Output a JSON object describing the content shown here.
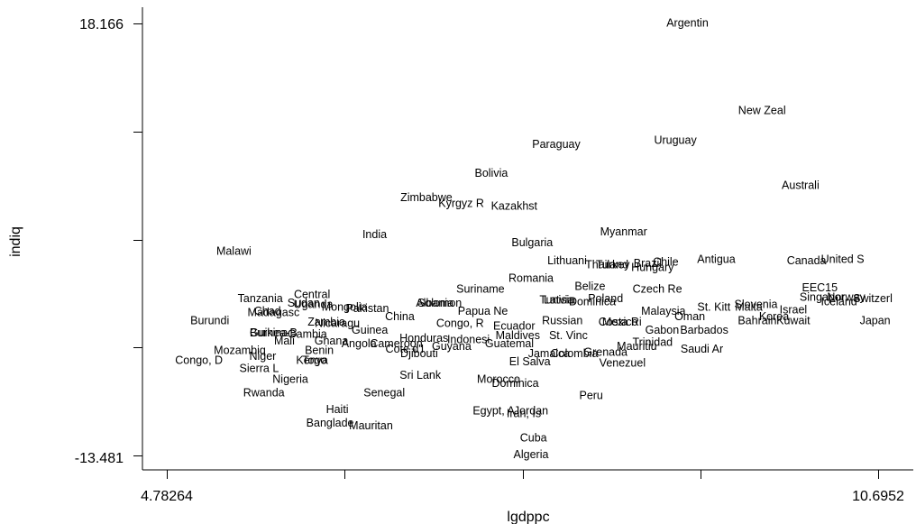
{
  "chart_data": {
    "type": "scatter",
    "xlabel": "lgdppc",
    "ylabel": "indiq",
    "xlim": [
      4.78264,
      10.6952
    ],
    "ylim": [
      -13.481,
      18.166
    ],
    "x_tick_labels": [
      "4.78264",
      "10.6952"
    ],
    "y_tick_labels": [
      "18.166",
      "-13.481"
    ],
    "grid": false,
    "marker": "country name label",
    "points": [
      {
        "label": "Argentin",
        "x": 9.11,
        "y": 18.2
      },
      {
        "label": "New Zeal",
        "x": 9.73,
        "y": 11.8
      },
      {
        "label": "Paraguay",
        "x": 8.02,
        "y": 9.3
      },
      {
        "label": "Uruguay",
        "x": 9.01,
        "y": 9.6
      },
      {
        "label": "Bolivia",
        "x": 7.48,
        "y": 7.2
      },
      {
        "label": "Australi",
        "x": 10.05,
        "y": 6.3
      },
      {
        "label": "Zimbabwe",
        "x": 6.94,
        "y": 5.4
      },
      {
        "label": "Kyrgyz R",
        "x": 7.23,
        "y": 5.0
      },
      {
        "label": "Kazakhst",
        "x": 7.67,
        "y": 4.8
      },
      {
        "label": "India",
        "x": 6.51,
        "y": 2.7
      },
      {
        "label": "Myanmar",
        "x": 8.58,
        "y": 2.9
      },
      {
        "label": "Bulgaria",
        "x": 7.82,
        "y": 2.1
      },
      {
        "label": "Malawi",
        "x": 5.34,
        "y": 1.5
      },
      {
        "label": "Lithuani",
        "x": 8.11,
        "y": 0.8
      },
      {
        "label": "Thailand",
        "x": 8.44,
        "y": 0.5
      },
      {
        "label": "Turkey",
        "x": 8.49,
        "y": 0.5
      },
      {
        "label": "Hungary",
        "x": 8.82,
        "y": 0.3
      },
      {
        "label": "Brazil",
        "x": 8.78,
        "y": 0.6
      },
      {
        "label": "Chile",
        "x": 8.93,
        "y": 0.7
      },
      {
        "label": "Antigua",
        "x": 9.35,
        "y": 0.9
      },
      {
        "label": "Canada",
        "x": 10.1,
        "y": 0.8
      },
      {
        "label": "United S",
        "x": 10.4,
        "y": 0.9
      },
      {
        "label": "Romania",
        "x": 7.81,
        "y": -0.5
      },
      {
        "label": "Suriname",
        "x": 7.39,
        "y": -1.3
      },
      {
        "label": "EEC15",
        "x": 10.21,
        "y": -1.2
      },
      {
        "label": "Belize",
        "x": 8.3,
        "y": -1.1
      },
      {
        "label": "Czech Re",
        "x": 8.86,
        "y": -1.3
      },
      {
        "label": "Switzerl",
        "x": 10.65,
        "y": -2.0
      },
      {
        "label": "Norway",
        "x": 10.43,
        "y": -1.9
      },
      {
        "label": "Singapor",
        "x": 10.23,
        "y": -1.9
      },
      {
        "label": "Iceland",
        "x": 10.37,
        "y": -2.2
      },
      {
        "label": "Tanzania",
        "x": 5.56,
        "y": -2.0
      },
      {
        "label": "Central",
        "x": 5.99,
        "y": -1.7
      },
      {
        "label": "Sudan",
        "x": 5.92,
        "y": -2.3
      },
      {
        "label": "Uganda",
        "x": 6.0,
        "y": -2.4
      },
      {
        "label": "Chad",
        "x": 5.62,
        "y": -2.9
      },
      {
        "label": "Madagasc",
        "x": 5.67,
        "y": -3.0
      },
      {
        "label": "Mongolia",
        "x": 6.26,
        "y": -2.6
      },
      {
        "label": "Pakistan",
        "x": 6.45,
        "y": -2.7
      },
      {
        "label": "Albania",
        "x": 7.01,
        "y": -2.3
      },
      {
        "label": "Solomon",
        "x": 7.05,
        "y": -2.3
      },
      {
        "label": "Papua Ne",
        "x": 7.41,
        "y": -2.9
      },
      {
        "label": "Latvia",
        "x": 8.04,
        "y": -2.1
      },
      {
        "label": "Tunisia",
        "x": 8.03,
        "y": -2.1
      },
      {
        "label": "Dominica",
        "x": 8.32,
        "y": -2.2
      },
      {
        "label": "Poland",
        "x": 8.43,
        "y": -2.0
      },
      {
        "label": "Malaysia",
        "x": 8.91,
        "y": -2.9
      },
      {
        "label": "St. Kitt",
        "x": 9.33,
        "y": -2.6
      },
      {
        "label": "Slovenia",
        "x": 9.68,
        "y": -2.4
      },
      {
        "label": "Malta",
        "x": 9.62,
        "y": -2.6
      },
      {
        "label": "Korea",
        "x": 9.83,
        "y": -3.3
      },
      {
        "label": "Bahrain",
        "x": 9.69,
        "y": -3.6
      },
      {
        "label": "Kuwait",
        "x": 9.99,
        "y": -3.6
      },
      {
        "label": "Israel",
        "x": 9.99,
        "y": -2.8
      },
      {
        "label": "Japan",
        "x": 10.67,
        "y": -3.6
      },
      {
        "label": "Burundi",
        "x": 5.14,
        "y": -3.6
      },
      {
        "label": "Zambia",
        "x": 6.11,
        "y": -3.7
      },
      {
        "label": "Nicaragu",
        "x": 6.2,
        "y": -3.8
      },
      {
        "label": "China",
        "x": 6.72,
        "y": -3.3
      },
      {
        "label": "Guinea",
        "x": 6.47,
        "y": -4.3
      },
      {
        "label": "Congo, R",
        "x": 7.22,
        "y": -3.8
      },
      {
        "label": "Ecuador",
        "x": 7.67,
        "y": -4.0
      },
      {
        "label": "Russian",
        "x": 8.07,
        "y": -3.6
      },
      {
        "label": "Costa Ri",
        "x": 8.55,
        "y": -3.7
      },
      {
        "label": "Mexico",
        "x": 8.55,
        "y": -3.7
      },
      {
        "label": "Oman",
        "x": 9.13,
        "y": -3.3
      },
      {
        "label": "Gabon",
        "x": 8.9,
        "y": -4.3
      },
      {
        "label": "Barbados",
        "x": 9.25,
        "y": -4.3
      },
      {
        "label": "Burkina",
        "x": 5.63,
        "y": -4.5
      },
      {
        "label": "Guinea-B",
        "x": 5.67,
        "y": -4.5
      },
      {
        "label": "Gambia",
        "x": 5.95,
        "y": -4.6
      },
      {
        "label": "Mali",
        "x": 5.76,
        "y": -5.1
      },
      {
        "label": "Ghana",
        "x": 6.15,
        "y": -5.1
      },
      {
        "label": "Angola",
        "x": 6.38,
        "y": -5.3
      },
      {
        "label": "Cameroon",
        "x": 6.69,
        "y": -5.3
      },
      {
        "label": "Honduras",
        "x": 6.92,
        "y": -4.9
      },
      {
        "label": "Indonesi",
        "x": 7.29,
        "y": -5.0
      },
      {
        "label": "Guyana",
        "x": 7.15,
        "y": -5.5
      },
      {
        "label": "Maldives",
        "x": 7.7,
        "y": -4.7
      },
      {
        "label": "St. Vinc",
        "x": 8.12,
        "y": -4.7
      },
      {
        "label": "Guatemal",
        "x": 7.63,
        "y": -5.3
      },
      {
        "label": "Mauritiu",
        "x": 8.69,
        "y": -5.5
      },
      {
        "label": "Trinidad",
        "x": 8.82,
        "y": -5.2
      },
      {
        "label": "Saudi Ar",
        "x": 9.23,
        "y": -5.7
      },
      {
        "label": "Mozambiq",
        "x": 5.39,
        "y": -5.8
      },
      {
        "label": "Niger",
        "x": 5.58,
        "y": -6.2
      },
      {
        "label": "Benin",
        "x": 6.05,
        "y": -5.8
      },
      {
        "label": "Cote d'I",
        "x": 6.76,
        "y": -5.7
      },
      {
        "label": "Djibouti",
        "x": 6.88,
        "y": -6.0
      },
      {
        "label": "Jamaica",
        "x": 7.96,
        "y": -6.0
      },
      {
        "label": "Colombia",
        "x": 8.17,
        "y": -6.0
      },
      {
        "label": "Grenada",
        "x": 8.43,
        "y": -5.9
      },
      {
        "label": "Venezuel",
        "x": 8.57,
        "y": -6.7
      },
      {
        "label": "El Salva",
        "x": 7.8,
        "y": -6.6
      },
      {
        "label": "Congo, D",
        "x": 5.05,
        "y": -6.5
      },
      {
        "label": "Kenya",
        "x": 5.99,
        "y": -6.5
      },
      {
        "label": "Togo",
        "x": 6.01,
        "y": -6.5
      },
      {
        "label": "Sierra L",
        "x": 5.55,
        "y": -7.1
      },
      {
        "label": "Sri Lank",
        "x": 6.89,
        "y": -7.6
      },
      {
        "label": "Nigeria",
        "x": 5.81,
        "y": -7.9
      },
      {
        "label": "Morocco",
        "x": 7.54,
        "y": -7.9
      },
      {
        "label": "Dominica",
        "x": 7.68,
        "y": -8.2
      },
      {
        "label": "Rwanda",
        "x": 5.59,
        "y": -8.9
      },
      {
        "label": "Senegal",
        "x": 6.59,
        "y": -8.9
      },
      {
        "label": "Peru",
        "x": 8.31,
        "y": -9.1
      },
      {
        "label": "Haiti",
        "x": 6.2,
        "y": -10.1
      },
      {
        "label": "Egypt, A",
        "x": 7.5,
        "y": -10.2
      },
      {
        "label": "Jordan",
        "x": 7.81,
        "y": -10.2
      },
      {
        "label": "Iran, Is",
        "x": 7.75,
        "y": -10.4
      },
      {
        "label": "Banglade",
        "x": 6.14,
        "y": -11.1
      },
      {
        "label": "Mauritan",
        "x": 6.48,
        "y": -11.3
      },
      {
        "label": "Cuba",
        "x": 7.83,
        "y": -12.2
      },
      {
        "label": "Algeria",
        "x": 7.81,
        "y": -13.4
      }
    ]
  }
}
